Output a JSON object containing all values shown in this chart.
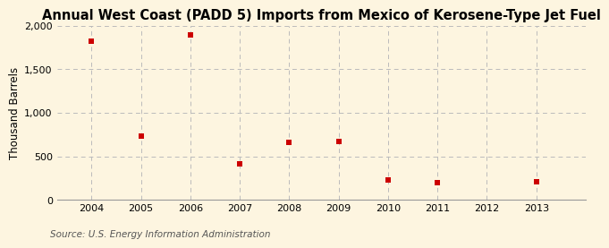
{
  "title": "Annual West Coast (PADD 5) Imports from Mexico of Kerosene-Type Jet Fuel",
  "ylabel": "Thousand Barrels",
  "source": "Source: U.S. Energy Information Administration",
  "years": [
    2004,
    2005,
    2006,
    2007,
    2008,
    2009,
    2010,
    2011,
    2012,
    2013
  ],
  "values": [
    1820,
    730,
    1890,
    420,
    660,
    670,
    230,
    195,
    null,
    210
  ],
  "xlim": [
    2003.3,
    2014.0
  ],
  "ylim": [
    0,
    2000
  ],
  "yticks": [
    0,
    500,
    1000,
    1500,
    2000
  ],
  "xticks": [
    2004,
    2005,
    2006,
    2007,
    2008,
    2009,
    2010,
    2011,
    2012,
    2013
  ],
  "marker_color": "#cc0000",
  "marker_size": 18,
  "bg_color": "#fdf5e0",
  "grid_color": "#bbbbbb",
  "title_fontsize": 10.5,
  "label_fontsize": 8.5,
  "tick_fontsize": 8,
  "source_fontsize": 7.5
}
